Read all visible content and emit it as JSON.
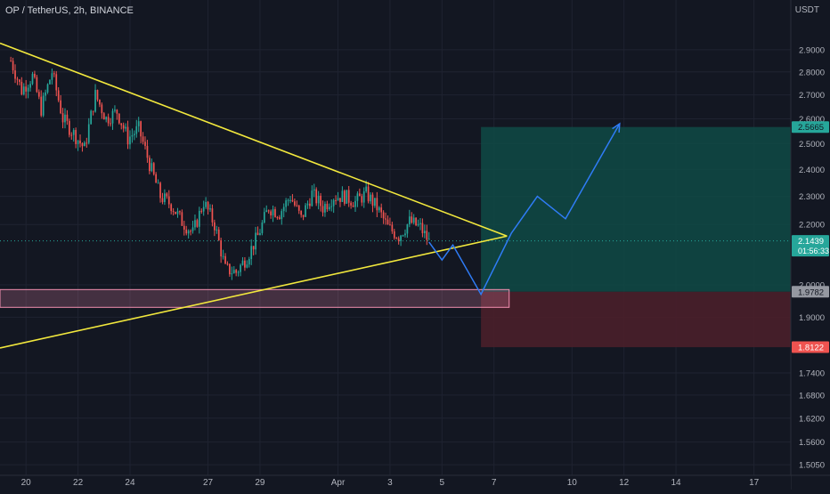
{
  "header": {
    "title": "OP / TetherUS, 2h, BINANCE",
    "unit": "USDT"
  },
  "colors": {
    "background": "#131722",
    "grid": "#1f2331",
    "up": "#26a69a",
    "down": "#ef5350",
    "trendline": "#f2e83d",
    "projection": "#2f7cf6",
    "target_zone": "#0f4a45",
    "stop_zone": "#4a1f2a",
    "support_zone": "#f48fb1",
    "axis_text": "#b2b5be"
  },
  "chart_data": {
    "type": "candlestick",
    "title": "OP / TetherUS, 2h, BINANCE",
    "y_axis": {
      "scale": "log",
      "range": [
        1.48,
        3.05
      ],
      "tick_labels": [
        "2.9000",
        "2.8000",
        "2.7000",
        "2.6000",
        "2.5000",
        "2.4000",
        "2.3000",
        "2.2000",
        "2.0000",
        "1.9000",
        "1.7400",
        "1.6800",
        "1.6200",
        "1.5600",
        "1.5050"
      ],
      "ticks": [
        2.9,
        2.8,
        2.7,
        2.6,
        2.5,
        2.4,
        2.3,
        2.2,
        2.0,
        1.9,
        1.74,
        1.68,
        1.62,
        1.56,
        1.505
      ]
    },
    "x_axis": {
      "tick_labels": [
        "20",
        "22",
        "24",
        "27",
        "29",
        "Apr",
        "3",
        "5",
        "7",
        "10",
        "12",
        "14",
        "17"
      ],
      "tick_dates": [
        "2023-03-20",
        "2023-03-22",
        "2023-03-24",
        "2023-03-27",
        "2023-03-29",
        "2023-04-01",
        "2023-04-03",
        "2023-04-05",
        "2023-04-07",
        "2023-04-10",
        "2023-04-12",
        "2023-04-14",
        "2023-04-17"
      ]
    },
    "price_path": [
      {
        "time": "2023-03-19 10:00",
        "price": 2.85
      },
      {
        "time": "2023-03-19 20:00",
        "price": 2.72
      },
      {
        "time": "2023-03-20 06:00",
        "price": 2.78
      },
      {
        "time": "2023-03-20 14:00",
        "price": 2.64
      },
      {
        "time": "2023-03-21 00:00",
        "price": 2.8
      },
      {
        "time": "2023-03-21 10:00",
        "price": 2.6
      },
      {
        "time": "2023-03-21 20:00",
        "price": 2.54
      },
      {
        "time": "2023-03-22 06:00",
        "price": 2.48
      },
      {
        "time": "2023-03-22 16:00",
        "price": 2.7
      },
      {
        "time": "2023-03-23 02:00",
        "price": 2.6
      },
      {
        "time": "2023-03-23 12:00",
        "price": 2.63
      },
      {
        "time": "2023-03-23 22:00",
        "price": 2.52
      },
      {
        "time": "2023-03-24 08:00",
        "price": 2.56
      },
      {
        "time": "2023-03-24 18:00",
        "price": 2.42
      },
      {
        "time": "2023-03-25 04:00",
        "price": 2.3
      },
      {
        "time": "2023-03-25 14:00",
        "price": 2.27
      },
      {
        "time": "2023-03-26 00:00",
        "price": 2.21
      },
      {
        "time": "2023-03-26 10:00",
        "price": 2.17
      },
      {
        "time": "2023-03-26 20:00",
        "price": 2.28
      },
      {
        "time": "2023-03-27 06:00",
        "price": 2.2
      },
      {
        "time": "2023-03-27 16:00",
        "price": 2.05
      },
      {
        "time": "2023-03-28 02:00",
        "price": 2.04
      },
      {
        "time": "2023-03-28 12:00",
        "price": 2.09
      },
      {
        "time": "2023-03-28 22:00",
        "price": 2.16
      },
      {
        "time": "2023-03-29 08:00",
        "price": 2.26
      },
      {
        "time": "2023-03-29 18:00",
        "price": 2.24
      },
      {
        "time": "2023-03-30 04:00",
        "price": 2.3
      },
      {
        "time": "2023-03-30 14:00",
        "price": 2.22
      },
      {
        "time": "2023-03-31 00:00",
        "price": 2.31
      },
      {
        "time": "2023-03-31 10:00",
        "price": 2.26
      },
      {
        "time": "2023-03-31 20:00",
        "price": 2.3
      },
      {
        "time": "2023-04-01 06:00",
        "price": 2.3
      },
      {
        "time": "2023-04-01 16:00",
        "price": 2.28
      },
      {
        "time": "2023-04-02 02:00",
        "price": 2.31
      },
      {
        "time": "2023-04-02 12:00",
        "price": 2.26
      },
      {
        "time": "2023-04-02 22:00",
        "price": 2.19
      },
      {
        "time": "2023-04-03 08:00",
        "price": 2.16
      },
      {
        "time": "2023-04-03 18:00",
        "price": 2.21
      },
      {
        "time": "2023-04-04 04:00",
        "price": 2.19
      },
      {
        "time": "2023-04-04 12:00",
        "price": 2.14
      }
    ],
    "trendlines": [
      {
        "name": "Descending resistance",
        "from": {
          "time": "2023-03-19 00:00",
          "price": 2.93
        },
        "to": {
          "time": "2023-04-07 12:00",
          "price": 2.16
        }
      },
      {
        "name": "Ascending support",
        "from": {
          "time": "2023-03-19 00:00",
          "price": 1.81
        },
        "to": {
          "time": "2023-04-07 12:00",
          "price": 2.16
        }
      }
    ],
    "support_zone": {
      "time_start": "2023-03-19 00:00",
      "time_end": "2023-04-07 14:00",
      "price_low": 1.93,
      "price_high": 1.985
    },
    "position": {
      "time_start": "2023-04-06 12:00",
      "time_end": "2023-04-18 10:00",
      "entry": 1.9782,
      "target": 2.5665,
      "stop": 1.8122
    },
    "projection_path": [
      {
        "time": "2023-04-04 12:00",
        "price": 2.14
      },
      {
        "time": "2023-04-05 00:00",
        "price": 2.08
      },
      {
        "time": "2023-04-05 10:00",
        "price": 2.13
      },
      {
        "time": "2023-04-06 12:00",
        "price": 1.97
      },
      {
        "time": "2023-04-07 16:00",
        "price": 2.17
      },
      {
        "time": "2023-04-08 16:00",
        "price": 2.3
      },
      {
        "time": "2023-04-09 18:00",
        "price": 2.22
      },
      {
        "time": "2023-04-11 20:00",
        "price": 2.58
      }
    ],
    "price_labels": [
      {
        "text": "2.5665",
        "value": 2.5665,
        "kind": "target"
      },
      {
        "text": "2.1439",
        "value": 2.1439,
        "kind": "current",
        "sub": "01:56:33"
      },
      {
        "text": "1.9782",
        "value": 1.9782,
        "kind": "entry"
      },
      {
        "text": "1.8122",
        "value": 1.8122,
        "kind": "stop"
      }
    ],
    "current_price": 2.1439
  }
}
